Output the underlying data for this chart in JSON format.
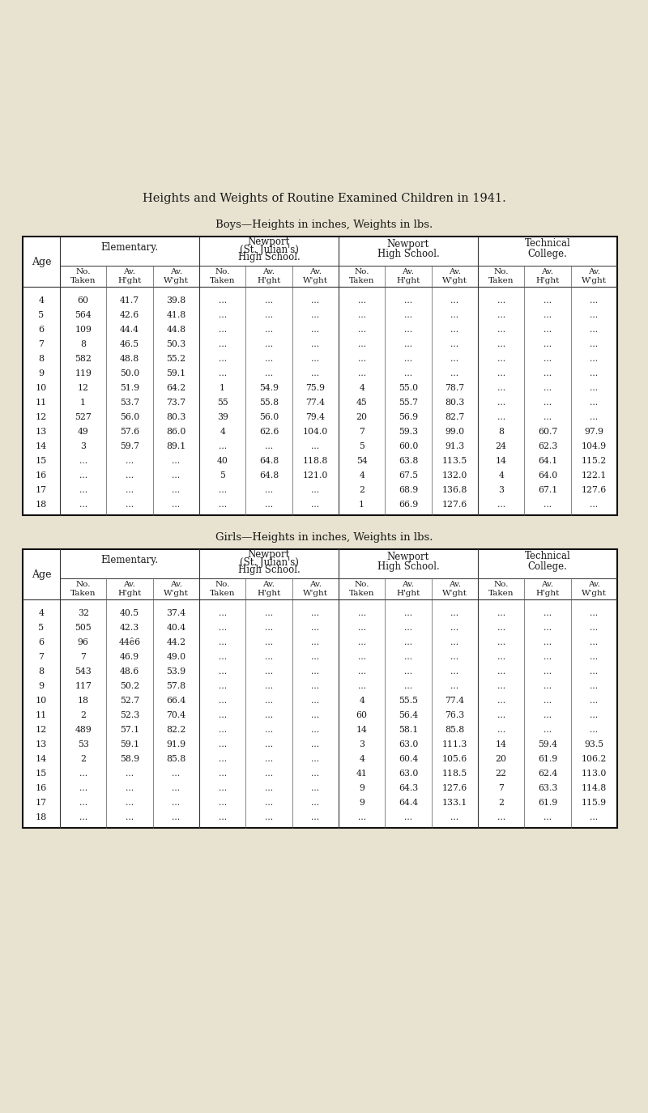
{
  "title": "Heights and Weights of Routine Examined Children in 1941.",
  "boys_subtitle": "Boys—Heights in inches, Weights in lbs.",
  "girls_subtitle": "Girls—Heights in inches, Weights in lbs.",
  "bg_color": "#e8e3d0",
  "age_label": "Age",
  "boys_rows": [
    [
      "4",
      "60",
      "41.7",
      "39.8",
      "...",
      "...",
      "...",
      "...",
      "...",
      "...",
      "...",
      "...",
      "..."
    ],
    [
      "5",
      "564",
      "42.6",
      "41.8",
      "...",
      "...",
      "...",
      "...",
      "...",
      "...",
      "...",
      "...",
      "..."
    ],
    [
      "6",
      "109",
      "44.4",
      "44.8",
      "...",
      "...",
      "...",
      "...",
      "...",
      "...",
      "...",
      "...",
      "..."
    ],
    [
      "7",
      "8",
      "46.5",
      "50.3",
      "...",
      "...",
      "...",
      "...",
      "...",
      "...",
      "...",
      "...",
      "..."
    ],
    [
      "8",
      "582",
      "48.8",
      "55.2",
      "...",
      "...",
      "...",
      "...",
      "...",
      "...",
      "...",
      "...",
      "..."
    ],
    [
      "9",
      "119",
      "50.0",
      "59.1",
      "...",
      "...",
      "...",
      "...",
      "...",
      "...",
      "...",
      "...",
      "..."
    ],
    [
      "10",
      "12",
      "51.9",
      "64.2",
      "1",
      "54.9",
      "75.9",
      "4",
      "55.0",
      "78.7",
      "...",
      "...",
      "..."
    ],
    [
      "11",
      "1",
      "53.7",
      "73.7",
      "55",
      "55.8",
      "77.4",
      "45",
      "55.7",
      "80.3",
      "...",
      "...",
      "..."
    ],
    [
      "12",
      "527",
      "56.0",
      "80.3",
      "39",
      "56.0",
      "79.4",
      "20",
      "56.9",
      "82.7",
      "...",
      "...",
      "..."
    ],
    [
      "13",
      "49",
      "57.6",
      "86.0",
      "4",
      "62.6",
      "104.0",
      "7",
      "59.3",
      "99.0",
      "8",
      "60.7",
      "97.9"
    ],
    [
      "14",
      "3",
      "59.7",
      "89.1",
      "...",
      "...",
      "...",
      "5",
      "60.0",
      "91.3",
      "24",
      "62.3",
      "104.9"
    ],
    [
      "15",
      "...",
      "...",
      "...",
      "40",
      "64.8",
      "118.8",
      "54",
      "63.8",
      "113.5",
      "14",
      "64.1",
      "115.2"
    ],
    [
      "16",
      "...",
      "...",
      "...",
      "5",
      "64.8",
      "121.0",
      "4",
      "67.5",
      "132.0",
      "4",
      "64.0",
      "122.1"
    ],
    [
      "17",
      "...",
      "...",
      "...",
      "...",
      "...",
      "...",
      "2",
      "68.9",
      "136.8",
      "3",
      "67.1",
      "127.6"
    ],
    [
      "18",
      "...",
      "...",
      "...",
      "...",
      "...",
      "...",
      "1",
      "66.9",
      "127.6",
      "...",
      "...",
      "..."
    ]
  ],
  "girls_rows": [
    [
      "4",
      "32",
      "40.5",
      "37.4",
      "...",
      "...",
      "...",
      "...",
      "...",
      "...",
      "...",
      "...",
      "..."
    ],
    [
      "5",
      "505",
      "42.3",
      "40.4",
      "...",
      "...",
      "...",
      "...",
      "...",
      "...",
      "...",
      "...",
      "..."
    ],
    [
      "6",
      "96",
      "44ȇ6",
      "44.2",
      "...",
      "...",
      "...",
      "...",
      "...",
      "...",
      "...",
      "...",
      "..."
    ],
    [
      "7",
      "7",
      "46.9",
      "49.0",
      "...",
      "...",
      "...",
      "...",
      "...",
      "...",
      "...",
      "...",
      "..."
    ],
    [
      "8",
      "543",
      "48.6",
      "53.9",
      "...",
      "...",
      "...",
      "...",
      "...",
      "...",
      "...",
      "...",
      "..."
    ],
    [
      "9",
      "117",
      "50.2",
      "57.8",
      "...",
      "...",
      "...",
      "...",
      "...",
      "...",
      "...",
      "...",
      "..."
    ],
    [
      "10",
      "18",
      "52.7",
      "66.4",
      "...",
      "...",
      "...",
      "4",
      "55.5",
      "77.4",
      "...",
      "...",
      "..."
    ],
    [
      "11",
      "2",
      "52.3",
      "70.4",
      "...",
      "...",
      "...",
      "60",
      "56.4",
      "76.3",
      "...",
      "...",
      "..."
    ],
    [
      "12",
      "489",
      "57.1",
      "82.2",
      "...",
      "...",
      "...",
      "14",
      "58.1",
      "85.8",
      "...",
      "...",
      "..."
    ],
    [
      "13",
      "53",
      "59.1",
      "91.9",
      "...",
      "...",
      "...",
      "3",
      "63.0",
      "111.3",
      "14",
      "59.4",
      "93.5"
    ],
    [
      "14",
      "2",
      "58.9",
      "85.8",
      "...",
      "...",
      "...",
      "4",
      "60.4",
      "105.6",
      "20",
      "61.9",
      "106.2"
    ],
    [
      "15",
      "...",
      "...",
      "...",
      "...",
      "...",
      "...",
      "41",
      "63.0",
      "118.5",
      "22",
      "62.4",
      "113.0"
    ],
    [
      "16",
      "...",
      "...",
      "...",
      "...",
      "...",
      "...",
      "9",
      "64.3",
      "127.6",
      "7",
      "63.3",
      "114.8"
    ],
    [
      "17",
      "...",
      "...",
      "...",
      "...",
      "...",
      "...",
      "9",
      "64.4",
      "133.1",
      "2",
      "61.9",
      "115.9"
    ],
    [
      "18",
      "...",
      "...",
      "...",
      "...",
      "...",
      "...",
      "...",
      "...",
      "...",
      "...",
      "...",
      "..."
    ]
  ]
}
